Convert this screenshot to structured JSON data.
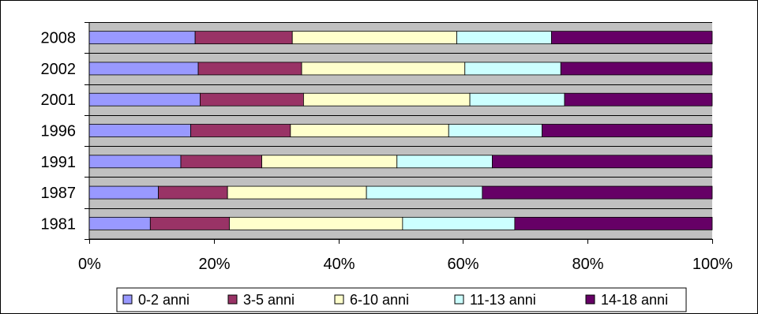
{
  "chart_data": {
    "type": "bar",
    "orientation": "horizontal",
    "stacked": "percent",
    "categories": [
      "2008",
      "2002",
      "2001",
      "1996",
      "1991",
      "1987",
      "1981"
    ],
    "series": [
      {
        "name": "0-2 anni",
        "color": "#9999FF",
        "values": [
          17.0,
          17.5,
          17.8,
          16.3,
          14.7,
          11.1,
          9.8
        ]
      },
      {
        "name": "3-5 anni",
        "color": "#993366",
        "values": [
          15.6,
          16.6,
          16.6,
          16.0,
          13.0,
          11.1,
          12.7
        ]
      },
      {
        "name": "6-10 anni",
        "color": "#FFFFCC",
        "values": [
          26.4,
          26.2,
          26.7,
          25.4,
          21.7,
          22.3,
          27.8
        ]
      },
      {
        "name": "11-13 anni",
        "color": "#CCFFFF",
        "values": [
          15.2,
          15.4,
          15.2,
          15.0,
          15.3,
          18.6,
          18.0
        ]
      },
      {
        "name": "14-18 anni",
        "color": "#660066",
        "values": [
          25.8,
          24.3,
          23.7,
          27.3,
          35.3,
          36.9,
          31.7
        ]
      }
    ],
    "xaxis_ticks": [
      "0%",
      "20%",
      "40%",
      "60%",
      "80%",
      "100%"
    ],
    "xlim": [
      0,
      100
    ],
    "plot_background": "#C0C0C0",
    "grid": true,
    "legend_position": "bottom"
  }
}
